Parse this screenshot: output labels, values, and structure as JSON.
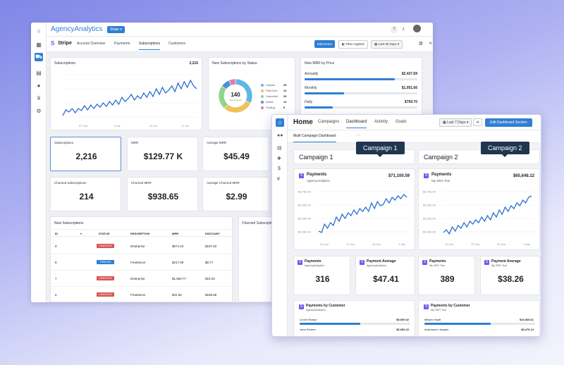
{
  "app": {
    "logo": "AgencyAnalytics",
    "client_select": "Stripe"
  },
  "nav": {
    "title": "Stripe",
    "tabs": [
      "Account Overview",
      "Payments",
      "Subscriptions",
      "Customers"
    ],
    "active_tab": "Subscriptions",
    "edit_button": "Edit Demo",
    "filter": "Filter Applied",
    "date": "Last 30 Days"
  },
  "subscriptions_chart": {
    "title": "Subscriptions",
    "value": "2,216",
    "x_ticks": [
      "27 Jun",
      "3 Jul",
      "10 Jul",
      "17 Jul"
    ],
    "y_ticks": []
  },
  "status_donut": {
    "title": "New Subscriptions by Status",
    "center_value": "140",
    "center_label": "Subscriptions",
    "items": [
      {
        "label": "Unpaid",
        "value": "45",
        "color": "#5fb7e4"
      },
      {
        "label": "Past Due",
        "value": "41",
        "color": "#f0c25a"
      },
      {
        "label": "Canceled",
        "value": "33",
        "color": "#8fd48a"
      },
      {
        "label": "Active",
        "value": "12",
        "color": "#4a90d9"
      },
      {
        "label": "Trialing",
        "value": "9",
        "color": "#e27ab0"
      }
    ]
  },
  "mrr_price": {
    "title": "New MRR by Price",
    "rows": [
      {
        "label": "Annually",
        "value": "$2,427.69",
        "fraction": 0.8
      },
      {
        "label": "Monthly",
        "value": "$1,051.66",
        "fraction": 0.35
      },
      {
        "label": "Daily",
        "value": "$759.70",
        "fraction": 0.25
      }
    ]
  },
  "kpis": [
    {
      "label": "Subscriptions",
      "value": "2,216"
    },
    {
      "label": "MRR",
      "value": "$129.77 K"
    },
    {
      "label": "Average MRR",
      "value": "$45.49"
    },
    {
      "label": "Churned Subscriptions",
      "value": "214"
    },
    {
      "label": "Churned MRR",
      "value": "$938.65"
    },
    {
      "label": "Average Churned MRR",
      "value": "$2.99"
    }
  ],
  "new_subs_table": {
    "title": "New Subscriptions",
    "headers": [
      "ID",
      "STATUS",
      "DESCRIPTION",
      "MRR",
      "DISCOUNT"
    ],
    "rows": [
      {
        "id": "9",
        "status": "CANCELED",
        "desc": "Enterprise",
        "mrr": "$674.23",
        "discount": "$197.60"
      },
      {
        "id": "8",
        "status": "TRIALING",
        "desc": "Freelancer",
        "mrr": "$217.69",
        "discount": "$8.77"
      },
      {
        "id": "7",
        "status": "CANCELED",
        "desc": "Enterprise",
        "mrr": "$1,983.77",
        "discount": "$19.33"
      },
      {
        "id": "6",
        "status": "CANCELED",
        "desc": "Freelancer",
        "mrr": "$31.55",
        "discount": "$186.88"
      }
    ]
  },
  "churned_table": {
    "title": "Churned Subscripti..."
  },
  "front": {
    "home": "Home",
    "tabs": [
      "Campaigns",
      "Dashboard",
      "Activity",
      "Goals"
    ],
    "active_tab": "Dashboard",
    "date": "Last 7 Days",
    "edit_button": "Edit Dashboard Section",
    "subtab": "Multi Campaign Dashboard",
    "more": "..."
  },
  "campaigns": [
    {
      "name": "Campaign 1",
      "tooltip": "Campaign 1",
      "payments_title": "Payments",
      "source": "AgencyAnalytics",
      "total": "$71,100.59",
      "y_ticks": [
        "$2,750.00",
        "$2,500.00",
        "$2,250.00",
        "$2,000.00"
      ],
      "x_ticks": [
        "10 Jun",
        "17 Jun",
        "24 Jun",
        "1 Jan"
      ],
      "k1_label": "Payments",
      "k1_value": "316",
      "k2_label": "Payment Average",
      "k2_value": "$47.41",
      "by_customer": "Payments by Customer",
      "c1_name": "Leone Roslyn",
      "c1_value": "$8,009.42",
      "c1_frac": 0.55,
      "c2_name": "Jana Stroten",
      "c2_value": "$6,082.22",
      "c2_frac": 0.4
    },
    {
      "name": "Campaign 2",
      "tooltip": "Campaign 2",
      "payments_title": "Payments",
      "source": "My SEO Tool",
      "total": "$65,648.12",
      "y_ticks": [
        "$2,750.00",
        "$2,500.00",
        "$2,250.00",
        "$2,000.00"
      ],
      "x_ticks": [
        "10 Jun",
        "17 Jun",
        "24 Jun",
        "1 Jan"
      ],
      "k1_label": "Payments",
      "k1_value": "389",
      "k2_label": "Payment Average",
      "k2_value": "$38.26",
      "by_customer": "Payments by Customer",
      "c1_name": "Milsam Hyatt",
      "c1_value": "$10,066.61",
      "c1_frac": 0.6,
      "c2_name": "Audreanne Jacqian",
      "c2_value": "$8,476.14",
      "c2_frac": 0.45
    }
  ],
  "colors": {
    "accent": "#2f7fd3",
    "line": "#2f6fd0",
    "canceled": "#d9534f",
    "trialing": "#2f7fd3"
  }
}
